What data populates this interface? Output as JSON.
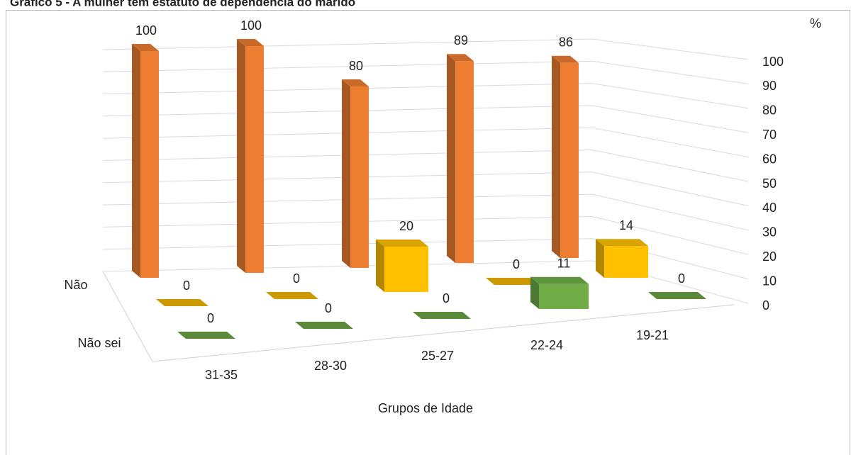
{
  "chart_data": {
    "type": "bar3d",
    "title": "Gráfico 5 - A mulher tem estatuto de dependência do marido",
    "xlabel": "Grupos de Idade",
    "ylabel": "%",
    "categories": [
      "31-35",
      "28-30",
      "25-27",
      "22-24",
      "19-21"
    ],
    "series": [
      {
        "name": "Não",
        "color": "#ed7d31",
        "values": [
          100,
          100,
          80,
          89,
          86
        ]
      },
      {
        "name": null,
        "color": "#ffc000",
        "values": [
          0,
          0,
          20,
          0,
          14
        ]
      },
      {
        "name": "Não sei",
        "color": "#70ad47",
        "values": [
          0,
          0,
          0,
          11,
          0
        ]
      }
    ],
    "ylim": [
      0,
      100
    ],
    "yticks": [
      0,
      10,
      20,
      30,
      40,
      50,
      60,
      70,
      80,
      90,
      100
    ],
    "grid": true
  }
}
